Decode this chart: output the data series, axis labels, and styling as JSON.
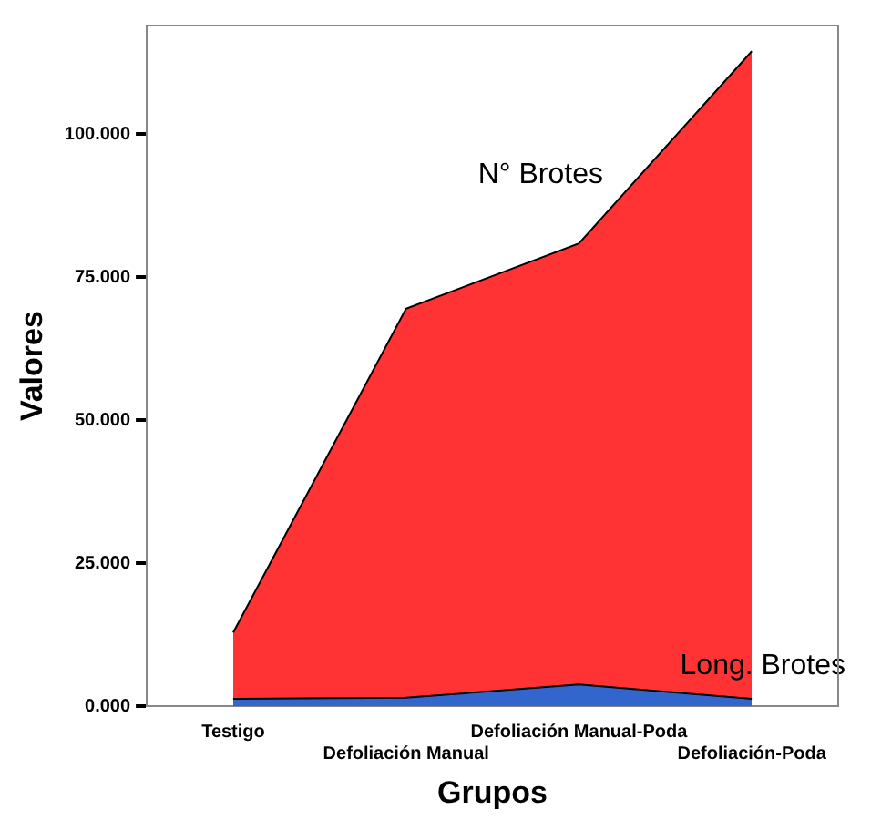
{
  "chart_data": {
    "type": "area",
    "stacked": true,
    "xlabel": "Grupos",
    "ylabel": "Valores",
    "categories": [
      "Testigo",
      "Defoliación Manual",
      "Defoliación Manual-Poda",
      "Defoliación-Poda"
    ],
    "series": [
      {
        "name": "Long. Brotes",
        "color": "#3366cc",
        "values": [
          1.3,
          1.5,
          3.8,
          1.3
        ]
      },
      {
        "name": "N° Brotes",
        "color": "#ff3333",
        "values": [
          11.6,
          68.0,
          77.1,
          113.2
        ]
      }
    ],
    "ylim": [
      0,
      119
    ],
    "yticks": [
      {
        "value": 0,
        "label": "0.000"
      },
      {
        "value": 25,
        "label": "25.000"
      },
      {
        "value": 50,
        "label": "50.000"
      },
      {
        "value": 75,
        "label": "75.000"
      },
      {
        "value": 100,
        "label": "100.000"
      }
    ],
    "grid": false,
    "legend": false
  }
}
